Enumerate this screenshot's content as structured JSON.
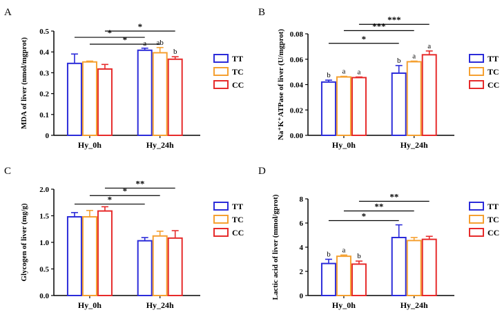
{
  "chart_data": [
    {
      "type": "bar",
      "panel": "A",
      "ylabel": "MDA of liver (nmol/mgprot)",
      "categories": [
        "Hy_0h",
        "Hy_24h"
      ],
      "ylim": [
        0,
        0.5
      ],
      "yticks": [
        0,
        0.1,
        0.2,
        0.3,
        0.4,
        0.5
      ],
      "ytick_labels": [
        "0",
        "0.1",
        "0.2",
        "0.3",
        "0.4",
        "0.5"
      ],
      "series": [
        {
          "name": "TT",
          "color": "#2b2bd9",
          "values": [
            0.345,
            0.408
          ],
          "errors": [
            0.045,
            0.01
          ]
        },
        {
          "name": "TC",
          "color": "#f5a030",
          "values": [
            0.352,
            0.396
          ],
          "errors": [
            0.004,
            0.025
          ]
        },
        {
          "name": "CC",
          "color": "#e62a2a",
          "values": [
            0.318,
            0.365
          ],
          "errors": [
            0.022,
            0.012
          ]
        }
      ],
      "letters": [
        [
          "",
          "",
          ""
        ],
        [
          "a",
          "ab",
          "b"
        ]
      ],
      "significance": [
        {
          "from": [
            0,
            0
          ],
          "to": [
            1,
            0
          ],
          "label": "*",
          "level": 0.47
        },
        {
          "from": [
            0,
            1
          ],
          "to": [
            1,
            1
          ],
          "label": "*",
          "level": 0.437
        },
        {
          "from": [
            0,
            2
          ],
          "to": [
            1,
            2
          ],
          "label": "*",
          "level": 0.5
        }
      ],
      "legend": [
        "TT",
        "TC",
        "CC"
      ]
    },
    {
      "type": "bar",
      "panel": "B",
      "ylabel": "Na⁺K⁺ATPase of liver (U/mgprot)",
      "categories": [
        "Hy_0h",
        "Hy_24h"
      ],
      "ylim": [
        0,
        0.08
      ],
      "yticks": [
        0,
        0.02,
        0.04,
        0.06,
        0.08
      ],
      "ytick_labels": [
        "0.00",
        "0.02",
        "0.04",
        "0.06",
        "0.08"
      ],
      "series": [
        {
          "name": "TT",
          "color": "#2b2bd9",
          "values": [
            0.042,
            0.049
          ],
          "errors": [
            0.0015,
            0.006
          ]
        },
        {
          "name": "TC",
          "color": "#f5a030",
          "values": [
            0.046,
            0.058
          ],
          "errors": [
            0.0005,
            0.0005
          ]
        },
        {
          "name": "CC",
          "color": "#e62a2a",
          "values": [
            0.0455,
            0.0635
          ],
          "errors": [
            0.0005,
            0.003
          ]
        }
      ],
      "letters": [
        [
          "b",
          "a",
          "a"
        ],
        [
          "b",
          "a",
          "a"
        ]
      ],
      "significance": [
        {
          "from": [
            0,
            0
          ],
          "to": [
            1,
            0
          ],
          "label": "*",
          "level": 0.0725
        },
        {
          "from": [
            0,
            1
          ],
          "to": [
            1,
            1
          ],
          "label": "***",
          "level": 0.0825
        },
        {
          "from": [
            0,
            2
          ],
          "to": [
            1,
            2
          ],
          "label": "***",
          "level": 0.0875
        }
      ],
      "legend": [
        "TT",
        "TC",
        "CC"
      ]
    },
    {
      "type": "bar",
      "panel": "C",
      "ylabel": "Glycogen of liver (mg/g)",
      "categories": [
        "Hy_0h",
        "Hy_24h"
      ],
      "ylim": [
        0,
        2.0
      ],
      "yticks": [
        0,
        0.5,
        1.0,
        1.5,
        2.0
      ],
      "ytick_labels": [
        "0.0",
        "0.5",
        "1.0",
        "1.5",
        "2.0"
      ],
      "series": [
        {
          "name": "TT",
          "color": "#2b2bd9",
          "values": [
            1.48,
            1.03
          ],
          "errors": [
            0.08,
            0.06
          ]
        },
        {
          "name": "TC",
          "color": "#f5a030",
          "values": [
            1.48,
            1.12
          ],
          "errors": [
            0.12,
            0.09
          ]
        },
        {
          "name": "CC",
          "color": "#e62a2a",
          "values": [
            1.59,
            1.08
          ],
          "errors": [
            0.08,
            0.14
          ]
        }
      ],
      "letters": [
        [
          "",
          "",
          ""
        ],
        [
          "",
          "",
          ""
        ]
      ],
      "significance": [
        {
          "from": [
            0,
            0
          ],
          "to": [
            1,
            0
          ],
          "label": "*",
          "level": 1.72
        },
        {
          "from": [
            0,
            1
          ],
          "to": [
            1,
            1
          ],
          "label": "*",
          "level": 1.88
        },
        {
          "from": [
            0,
            2
          ],
          "to": [
            1,
            2
          ],
          "label": "**",
          "level": 2.02
        }
      ],
      "legend": [
        "TT",
        "TC",
        "CC"
      ]
    },
    {
      "type": "bar",
      "panel": "D",
      "ylabel": "Lactic acid of liver (mmol/gprot)",
      "categories": [
        "Hy_0h",
        "Hy_24h"
      ],
      "ylim": [
        0,
        8
      ],
      "yticks": [
        0,
        2,
        4,
        6,
        8
      ],
      "ytick_labels": [
        "0",
        "2",
        "4",
        "6",
        "8"
      ],
      "series": [
        {
          "name": "TT",
          "color": "#2b2bd9",
          "values": [
            2.65,
            4.8
          ],
          "errors": [
            0.35,
            1.05
          ]
        },
        {
          "name": "TC",
          "color": "#f5a030",
          "values": [
            3.25,
            4.55
          ],
          "errors": [
            0.1,
            0.25
          ]
        },
        {
          "name": "CC",
          "color": "#e62a2a",
          "values": [
            2.6,
            4.65
          ],
          "errors": [
            0.25,
            0.25
          ]
        }
      ],
      "letters": [
        [
          "b",
          "a",
          "b"
        ],
        [
          "",
          "",
          ""
        ]
      ],
      "significance": [
        {
          "from": [
            0,
            0
          ],
          "to": [
            1,
            0
          ],
          "label": "*",
          "level": 6.2
        },
        {
          "from": [
            0,
            1
          ],
          "to": [
            1,
            1
          ],
          "label": "**",
          "level": 7.0
        },
        {
          "from": [
            0,
            2
          ],
          "to": [
            1,
            2
          ],
          "label": "**",
          "level": 7.8
        }
      ],
      "legend": [
        "TT",
        "TC",
        "CC"
      ]
    }
  ]
}
